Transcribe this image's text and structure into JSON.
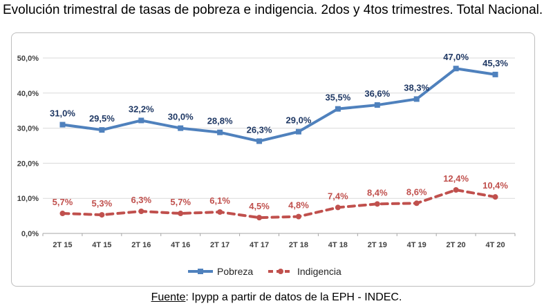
{
  "title": "Evolución trimestral de tasas de pobreza e indigencia. 2dos y 4tos trimestres. Total Nacional.",
  "source": {
    "label": "Fuente",
    "text": ": Ipypp a partir de datos de la EPH - INDEC."
  },
  "colors": {
    "pobreza": "#4f81bd",
    "indigencia": "#c0504d",
    "pobreza_label": "#1f3864",
    "indigencia_label": "#c0504d",
    "grid": "#d9d9d9"
  },
  "chart_data": {
    "type": "line",
    "title": "",
    "xlabel": "",
    "ylabel": "",
    "categories": [
      "2T 15",
      "4T 15",
      "2T 16",
      "4T 16",
      "2T 17",
      "4T 17",
      "2T 18",
      "4T 18",
      "2T 19",
      "4T 19",
      "2T 20",
      "4T 20"
    ],
    "ylim": [
      0,
      50
    ],
    "yticks": [
      0,
      10,
      20,
      30,
      40,
      50
    ],
    "ytick_labels": [
      "0,0%",
      "10,0%",
      "20,0%",
      "30,0%",
      "40,0%",
      "50,0%"
    ],
    "grid": true,
    "legend": "bottom",
    "series": [
      {
        "name": "Pobreza",
        "style": "solid",
        "marker": "square",
        "values": [
          31.0,
          29.5,
          32.2,
          30.0,
          28.8,
          26.3,
          29.0,
          35.5,
          36.6,
          38.3,
          47.0,
          45.3
        ],
        "labels": [
          "31,0%",
          "29,5%",
          "32,2%",
          "30,0%",
          "28,8%",
          "26,3%",
          "29,0%",
          "35,5%",
          "36,6%",
          "38,3%",
          "47,0%",
          "45,3%"
        ]
      },
      {
        "name": "Indigencia",
        "style": "dashed",
        "marker": "circle",
        "values": [
          5.7,
          5.3,
          6.3,
          5.7,
          6.1,
          4.5,
          4.8,
          7.4,
          8.4,
          8.6,
          12.4,
          10.4
        ],
        "labels": [
          "5,7%",
          "5,3%",
          "6,3%",
          "5,7%",
          "6,1%",
          "4,5%",
          "4,8%",
          "7,4%",
          "8,4%",
          "8,6%",
          "12,4%",
          "10,4%"
        ]
      }
    ]
  }
}
